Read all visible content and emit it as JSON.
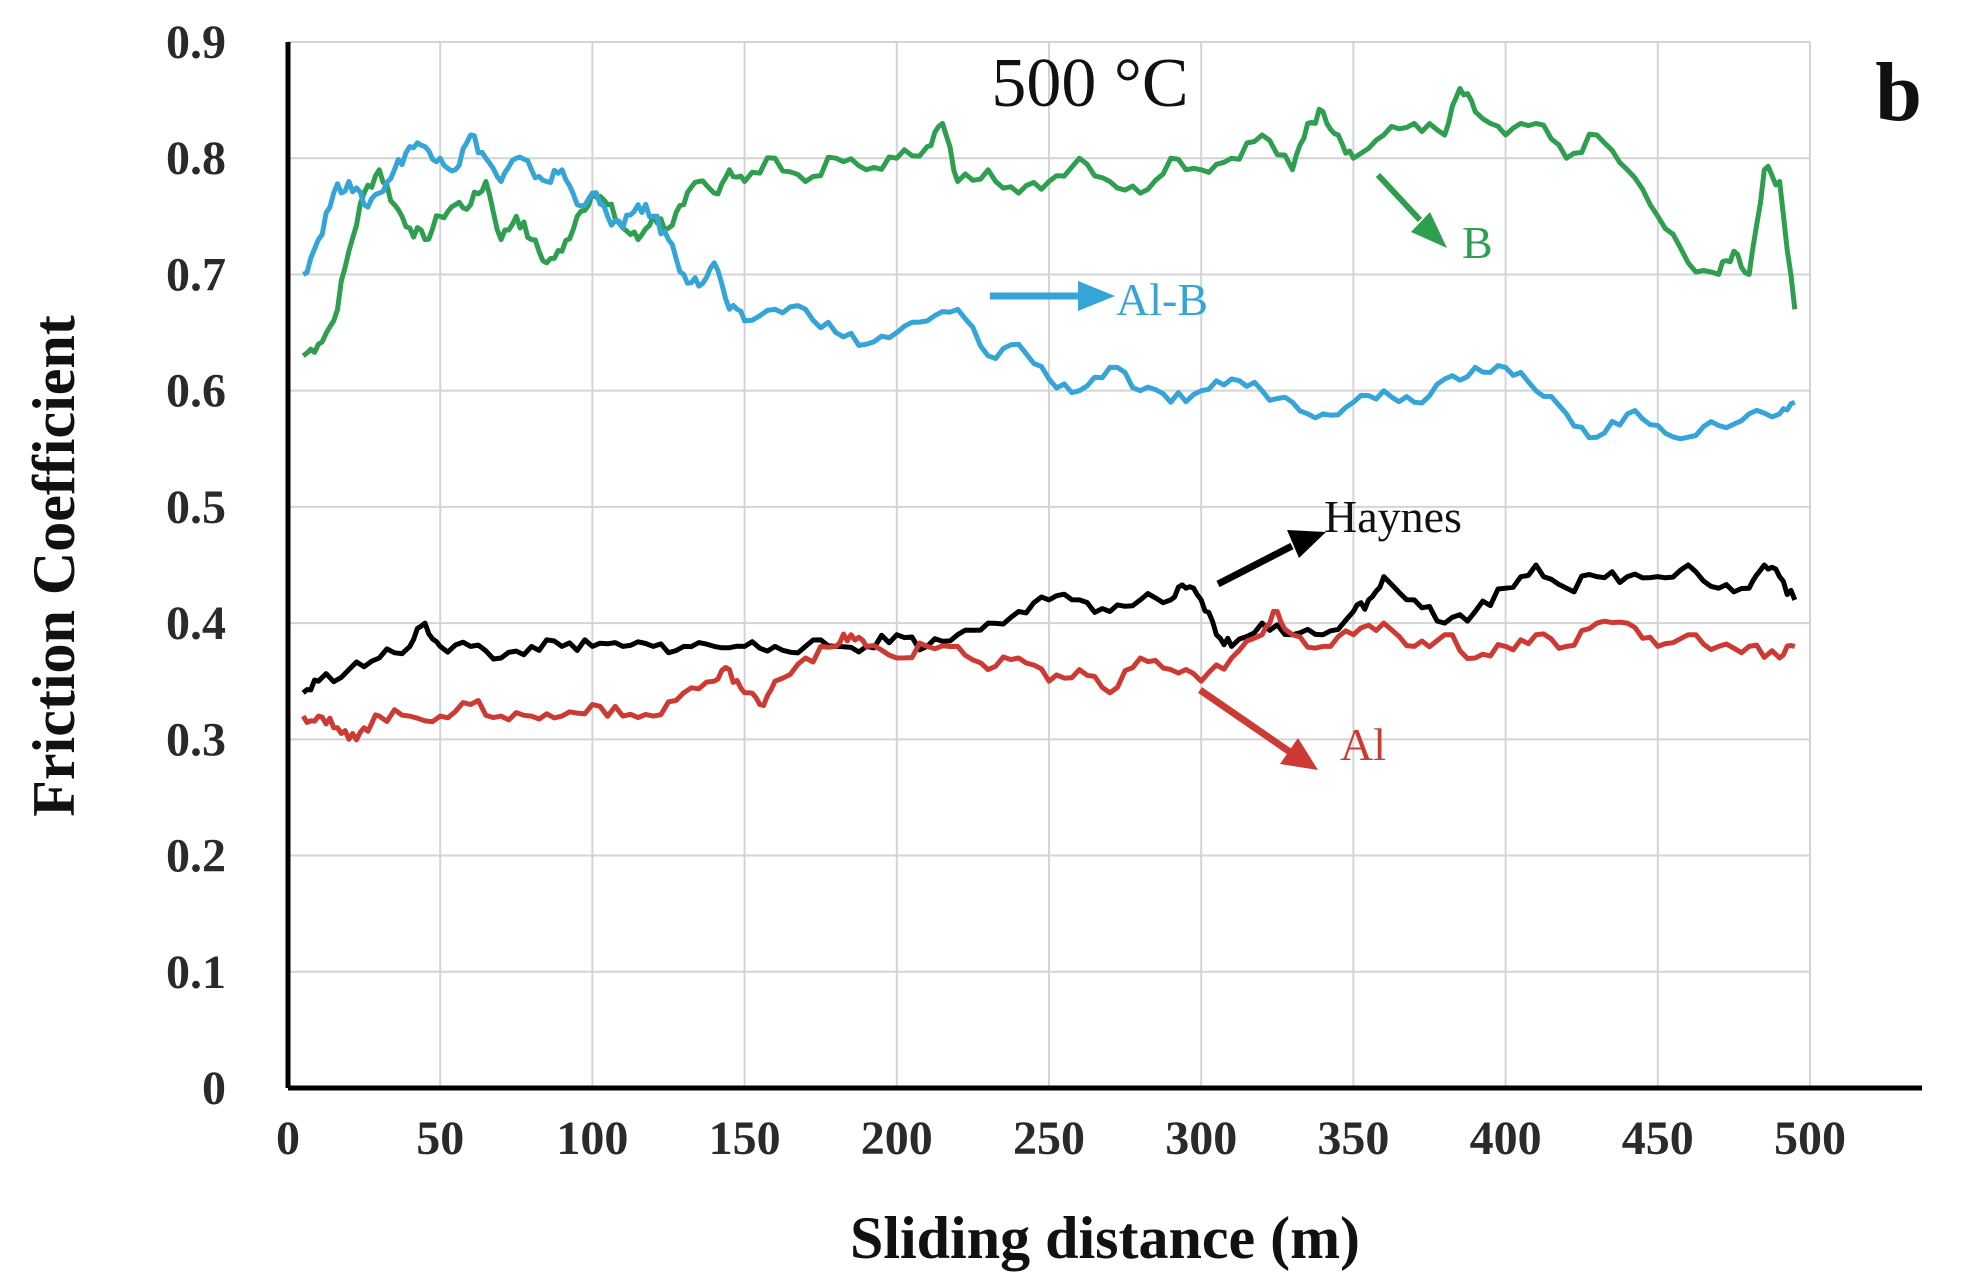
{
  "chart_data": {
    "type": "line",
    "title": "500 °C",
    "panel_label": "b",
    "xlabel": "Sliding distance (m)",
    "ylabel": "Friction Coefficient",
    "xlim": [
      0,
      500
    ],
    "ylim": [
      0,
      0.9
    ],
    "x_ticks": [
      "0",
      "50",
      "100",
      "150",
      "200",
      "250",
      "300",
      "350",
      "400",
      "450",
      "500"
    ],
    "y_ticks": [
      "0",
      "0.1",
      "0.2",
      "0.3",
      "0.4",
      "0.5",
      "0.6",
      "0.7",
      "0.8",
      "0.9"
    ],
    "grid": true,
    "series": [
      {
        "name": "B",
        "color": "#2e9e4f",
        "x": [
          5,
          10,
          15,
          20,
          25,
          30,
          35,
          40,
          45,
          50,
          55,
          60,
          65,
          70,
          75,
          80,
          85,
          90,
          95,
          100,
          105,
          110,
          115,
          120,
          125,
          130,
          135,
          140,
          145,
          150,
          160,
          170,
          180,
          190,
          200,
          210,
          215,
          220,
          230,
          240,
          250,
          260,
          270,
          280,
          290,
          300,
          310,
          320,
          330,
          335,
          340,
          345,
          350,
          360,
          370,
          380,
          385,
          390,
          400,
          410,
          420,
          430,
          440,
          450,
          460,
          470,
          475,
          480,
          485,
          490,
          495
        ],
        "y": [
          0.63,
          0.64,
          0.66,
          0.72,
          0.77,
          0.79,
          0.76,
          0.74,
          0.73,
          0.75,
          0.76,
          0.76,
          0.78,
          0.73,
          0.75,
          0.73,
          0.71,
          0.72,
          0.75,
          0.77,
          0.76,
          0.74,
          0.73,
          0.75,
          0.74,
          0.76,
          0.78,
          0.77,
          0.79,
          0.78,
          0.8,
          0.78,
          0.8,
          0.79,
          0.8,
          0.81,
          0.83,
          0.78,
          0.79,
          0.77,
          0.78,
          0.8,
          0.78,
          0.77,
          0.8,
          0.79,
          0.8,
          0.82,
          0.79,
          0.83,
          0.84,
          0.82,
          0.8,
          0.82,
          0.83,
          0.82,
          0.86,
          0.84,
          0.82,
          0.83,
          0.8,
          0.82,
          0.79,
          0.75,
          0.71,
          0.7,
          0.72,
          0.7,
          0.79,
          0.78,
          0.67
        ]
      },
      {
        "name": "Al-B",
        "color": "#35a4d6",
        "x": [
          5,
          10,
          15,
          20,
          25,
          30,
          35,
          40,
          45,
          50,
          55,
          60,
          65,
          70,
          75,
          80,
          85,
          90,
          95,
          100,
          105,
          110,
          115,
          120,
          125,
          130,
          135,
          140,
          145,
          150,
          160,
          170,
          180,
          190,
          200,
          210,
          220,
          230,
          240,
          250,
          260,
          270,
          280,
          290,
          300,
          310,
          320,
          330,
          340,
          350,
          360,
          370,
          380,
          390,
          400,
          410,
          420,
          430,
          440,
          450,
          460,
          470,
          480,
          490,
          495
        ],
        "y": [
          0.7,
          0.73,
          0.77,
          0.78,
          0.76,
          0.77,
          0.79,
          0.81,
          0.81,
          0.8,
          0.79,
          0.82,
          0.8,
          0.78,
          0.8,
          0.79,
          0.78,
          0.79,
          0.76,
          0.77,
          0.75,
          0.74,
          0.76,
          0.75,
          0.73,
          0.7,
          0.69,
          0.71,
          0.67,
          0.66,
          0.67,
          0.67,
          0.65,
          0.64,
          0.65,
          0.66,
          0.67,
          0.63,
          0.64,
          0.61,
          0.6,
          0.62,
          0.6,
          0.59,
          0.6,
          0.61,
          0.6,
          0.59,
          0.58,
          0.59,
          0.6,
          0.59,
          0.61,
          0.62,
          0.62,
          0.6,
          0.58,
          0.56,
          0.58,
          0.57,
          0.56,
          0.57,
          0.58,
          0.58,
          0.59
        ]
      },
      {
        "name": "Haynes",
        "color": "#000000",
        "x": [
          5,
          10,
          20,
          30,
          40,
          45,
          50,
          60,
          70,
          80,
          90,
          100,
          110,
          120,
          130,
          140,
          150,
          160,
          170,
          180,
          190,
          200,
          210,
          220,
          230,
          240,
          250,
          260,
          270,
          280,
          290,
          295,
          300,
          305,
          310,
          320,
          330,
          340,
          350,
          355,
          360,
          370,
          380,
          390,
          400,
          410,
          420,
          430,
          440,
          450,
          460,
          470,
          480,
          485,
          490,
          495
        ],
        "y": [
          0.34,
          0.35,
          0.36,
          0.37,
          0.38,
          0.4,
          0.38,
          0.38,
          0.37,
          0.38,
          0.38,
          0.38,
          0.38,
          0.38,
          0.38,
          0.38,
          0.38,
          0.38,
          0.38,
          0.38,
          0.38,
          0.39,
          0.38,
          0.39,
          0.4,
          0.41,
          0.42,
          0.42,
          0.41,
          0.42,
          0.42,
          0.43,
          0.42,
          0.39,
          0.38,
          0.4,
          0.39,
          0.39,
          0.41,
          0.42,
          0.44,
          0.42,
          0.4,
          0.41,
          0.43,
          0.45,
          0.43,
          0.44,
          0.44,
          0.44,
          0.45,
          0.43,
          0.43,
          0.45,
          0.44,
          0.42
        ]
      },
      {
        "name": "Al",
        "color": "#cc3a33",
        "x": [
          5,
          10,
          15,
          20,
          25,
          30,
          40,
          50,
          60,
          70,
          80,
          90,
          100,
          110,
          120,
          130,
          140,
          145,
          150,
          155,
          160,
          170,
          180,
          185,
          190,
          200,
          210,
          220,
          230,
          240,
          250,
          260,
          270,
          280,
          290,
          300,
          310,
          320,
          325,
          330,
          340,
          350,
          360,
          370,
          380,
          390,
          400,
          410,
          420,
          430,
          440,
          450,
          460,
          470,
          480,
          490,
          495
        ],
        "y": [
          0.32,
          0.32,
          0.31,
          0.3,
          0.31,
          0.32,
          0.32,
          0.32,
          0.33,
          0.32,
          0.32,
          0.32,
          0.33,
          0.32,
          0.32,
          0.34,
          0.35,
          0.36,
          0.34,
          0.33,
          0.35,
          0.37,
          0.38,
          0.39,
          0.38,
          0.37,
          0.38,
          0.38,
          0.36,
          0.37,
          0.35,
          0.36,
          0.34,
          0.37,
          0.36,
          0.35,
          0.37,
          0.39,
          0.41,
          0.39,
          0.38,
          0.39,
          0.4,
          0.38,
          0.39,
          0.37,
          0.38,
          0.39,
          0.38,
          0.4,
          0.4,
          0.38,
          0.39,
          0.38,
          0.38,
          0.37,
          0.38
        ]
      }
    ],
    "annotations": [
      {
        "text": "B",
        "target": "B"
      },
      {
        "text": "Al-B",
        "target": "Al-B"
      },
      {
        "text": "Haynes",
        "target": "Haynes"
      },
      {
        "text": "Al",
        "target": "Al"
      }
    ]
  }
}
